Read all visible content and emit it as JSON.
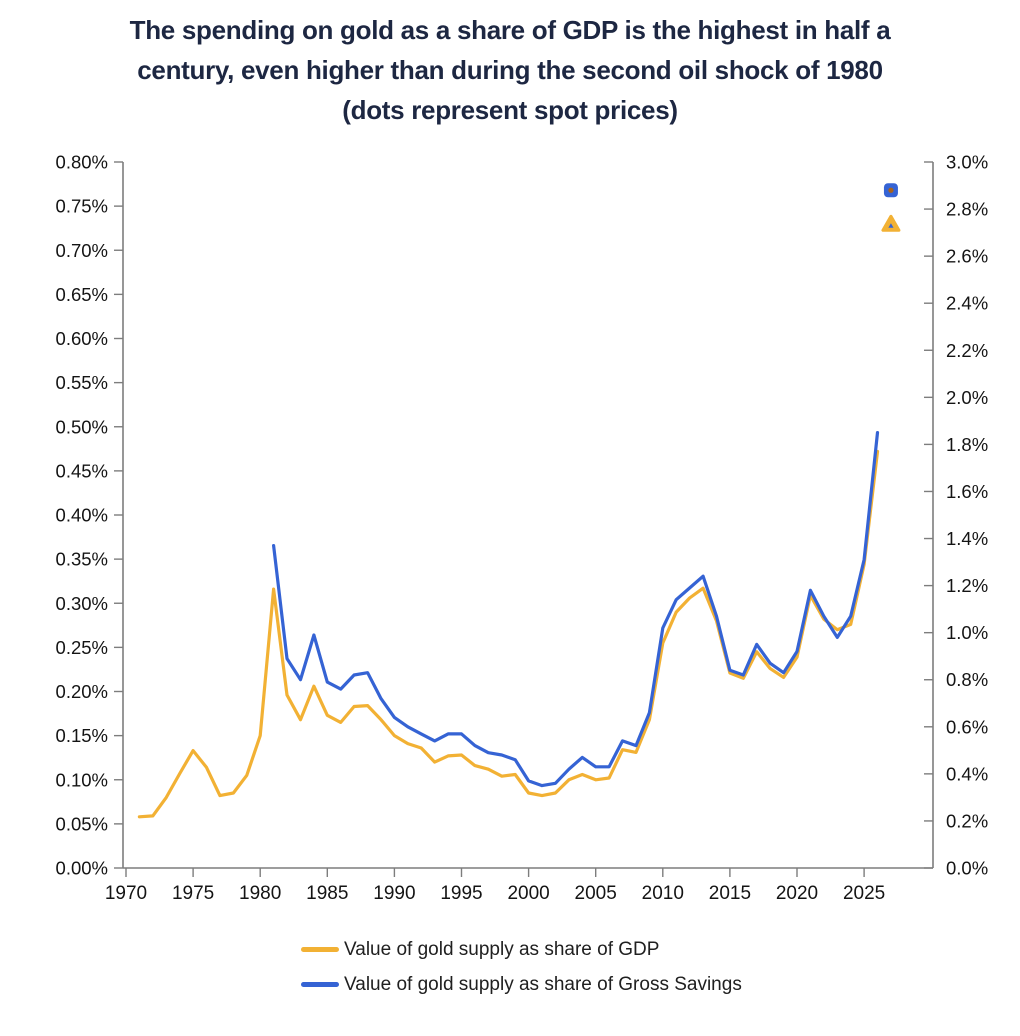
{
  "title": {
    "line1": "The spending on gold as a share of GDP is the highest in half a",
    "line2": "century, even higher than during the second oil shock of 1980",
    "line3": "(dots represent spot prices)"
  },
  "legend": {
    "items": [
      {
        "label": "Value of gold supply as share of GDP",
        "color": "#F2B134"
      },
      {
        "label": "Value of gold supply as share of Gross Savings",
        "color": "#3563D4"
      }
    ]
  },
  "colors": {
    "title_text": "#1d2742",
    "gdp_line": "#F2B134",
    "gross_savings_line": "#3563D4",
    "axis_line": "#7d7d7d",
    "tick_text": "#141414",
    "square_marker_center": "#a8621c",
    "triangle_marker_center": "#3563D4"
  },
  "chart_data": {
    "type": "line",
    "title": "The spending on gold as a share of GDP is the highest in half a century, even higher than during the second oil shock of 1980 (dots represent spot prices)",
    "grid": false,
    "legend_position": "bottom",
    "x_axis": {
      "ticks": [
        1970,
        1975,
        1980,
        1985,
        1990,
        1995,
        2000,
        2005,
        2010,
        2015,
        2020,
        2025
      ]
    },
    "left_axis": {
      "min": 0,
      "max": 0.8,
      "step": 0.05,
      "format_decimals": 2,
      "unit": "%"
    },
    "right_axis": {
      "min": 0,
      "max": 3.0,
      "step": 0.2,
      "format_decimals": 1,
      "unit": "%"
    },
    "series": [
      {
        "name": "Value of gold supply as share of GDP",
        "axis": "left",
        "color": "#F2B134",
        "x": [
          1971,
          1972,
          1973,
          1974,
          1975,
          1976,
          1977,
          1978,
          1979,
          1980,
          1981,
          1982,
          1983,
          1984,
          1985,
          1986,
          1987,
          1988,
          1989,
          1990,
          1991,
          1992,
          1993,
          1994,
          1995,
          1996,
          1997,
          1998,
          1999,
          2000,
          2001,
          2002,
          2003,
          2004,
          2005,
          2006,
          2007,
          2008,
          2009,
          2010,
          2011,
          2012,
          2013,
          2014,
          2015,
          2016,
          2017,
          2018,
          2019,
          2020,
          2021,
          2022,
          2023,
          2024,
          2025,
          2026
        ],
        "values": [
          0.058,
          0.059,
          0.08,
          0.107,
          0.133,
          0.114,
          0.082,
          0.085,
          0.105,
          0.15,
          0.316,
          0.196,
          0.168,
          0.206,
          0.173,
          0.165,
          0.183,
          0.184,
          0.168,
          0.15,
          0.141,
          0.136,
          0.12,
          0.127,
          0.128,
          0.116,
          0.112,
          0.104,
          0.106,
          0.085,
          0.082,
          0.085,
          0.1,
          0.106,
          0.1,
          0.102,
          0.134,
          0.131,
          0.168,
          0.255,
          0.29,
          0.306,
          0.317,
          0.28,
          0.221,
          0.215,
          0.245,
          0.226,
          0.216,
          0.239,
          0.309,
          0.282,
          0.27,
          0.276,
          0.344,
          0.472
        ]
      },
      {
        "name": "Value of gold supply as share of Gross Savings",
        "axis": "right",
        "color": "#3563D4",
        "x": [
          1981,
          1982,
          1983,
          1984,
          1985,
          1986,
          1987,
          1988,
          1989,
          1990,
          1991,
          1992,
          1993,
          1994,
          1995,
          1996,
          1997,
          1998,
          1999,
          2000,
          2001,
          2002,
          2003,
          2004,
          2005,
          2006,
          2007,
          2008,
          2009,
          2010,
          2011,
          2012,
          2013,
          2014,
          2015,
          2016,
          2017,
          2018,
          2019,
          2020,
          2021,
          2022,
          2023,
          2024,
          2025,
          2026
        ],
        "values": [
          1.37,
          0.89,
          0.8,
          0.99,
          0.79,
          0.76,
          0.82,
          0.83,
          0.72,
          0.64,
          0.6,
          0.57,
          0.54,
          0.57,
          0.57,
          0.52,
          0.49,
          0.48,
          0.46,
          0.37,
          0.35,
          0.36,
          0.42,
          0.47,
          0.43,
          0.43,
          0.54,
          0.52,
          0.66,
          1.02,
          1.14,
          1.19,
          1.24,
          1.07,
          0.84,
          0.82,
          0.95,
          0.87,
          0.83,
          0.92,
          1.18,
          1.07,
          0.98,
          1.07,
          1.31,
          1.85
        ]
      }
    ],
    "spot_markers": [
      {
        "name": "gross-savings-spot-price",
        "shape": "square",
        "axis": "right",
        "color": "#3563D4",
        "center_color": "#a8621c",
        "x": 2027,
        "value": 2.88
      },
      {
        "name": "gdp-spot-price",
        "shape": "triangle",
        "axis": "left",
        "color": "#F2B134",
        "center_color": "#3563D4",
        "x": 2027,
        "value": 0.73
      }
    ]
  }
}
